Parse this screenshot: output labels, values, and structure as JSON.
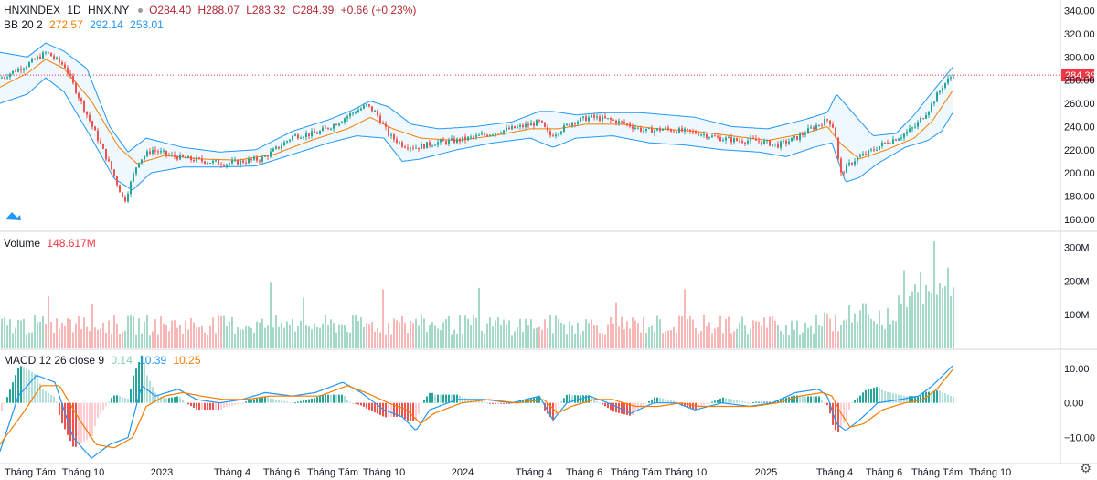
{
  "header": {
    "symbol": "HNXINDEX",
    "interval": "1D",
    "exchange": "HNX.NY",
    "open": "O284.40",
    "high": "H288.07",
    "low": "L283.32",
    "close": "C284.39",
    "change": "+0.66 (+0.23%)"
  },
  "bb": {
    "label": "BB 20 2",
    "mid": "272.57",
    "upper": "292.14",
    "lower": "253.01"
  },
  "volume": {
    "label": "Volume",
    "value": "148.617M"
  },
  "macd": {
    "label": "MACD 12 26 close 9",
    "hist": "0.14",
    "macd": "10.39",
    "signal": "10.25"
  },
  "price_tag": "284.39",
  "colors": {
    "up": "#26a69a",
    "down": "#ef5350",
    "bb_band": "#2196f3",
    "bb_mid": "#f57c00",
    "macd": "#2196f3",
    "signal": "#f57c00"
  },
  "chart_data": {
    "type": "candlestick",
    "price_axis": {
      "ticks": [
        "340.00",
        "320.00",
        "300.00",
        "280.00",
        "260.00",
        "240.00",
        "220.00",
        "200.00",
        "180.00",
        "160.00"
      ],
      "ylim": [
        152,
        346
      ]
    },
    "volume_axis": {
      "ticks": [
        "300M",
        "200M",
        "100M"
      ],
      "ylim": [
        0,
        340
      ]
    },
    "macd_axis": {
      "ticks": [
        "10.00",
        "0.00",
        "−10.00"
      ],
      "ylim": [
        -17,
        15
      ]
    },
    "x_labels": [
      "Tháng Tám",
      "Tháng 10",
      "2023",
      "Tháng 4",
      "Tháng 6",
      "Tháng Tám",
      "Tháng 10",
      "2024",
      "Tháng 4",
      "Tháng 6",
      "Tháng Tám",
      "Tháng 10",
      "2025",
      "Tháng 4",
      "Tháng 6",
      "Tháng Tám",
      "Tháng 10"
    ],
    "price_path": [
      [
        0,
        282
      ],
      [
        30,
        294
      ],
      [
        50,
        304
      ],
      [
        70,
        292
      ],
      [
        100,
        240
      ],
      [
        120,
        205
      ],
      [
        135,
        175
      ],
      [
        150,
        210
      ],
      [
        165,
        220
      ],
      [
        185,
        215
      ],
      [
        205,
        212
      ],
      [
        225,
        210
      ],
      [
        245,
        208
      ],
      [
        265,
        210
      ],
      [
        285,
        212
      ],
      [
        300,
        220
      ],
      [
        320,
        232
      ],
      [
        345,
        234
      ],
      [
        365,
        242
      ],
      [
        385,
        252
      ],
      [
        400,
        258
      ],
      [
        410,
        252
      ],
      [
        425,
        232
      ],
      [
        440,
        224
      ],
      [
        455,
        222
      ],
      [
        475,
        226
      ],
      [
        500,
        228
      ],
      [
        525,
        232
      ],
      [
        545,
        236
      ],
      [
        570,
        240
      ],
      [
        590,
        244
      ],
      [
        600,
        232
      ],
      [
        610,
        236
      ],
      [
        625,
        244
      ],
      [
        645,
        248
      ],
      [
        665,
        246
      ],
      [
        685,
        242
      ],
      [
        705,
        236
      ],
      [
        725,
        238
      ],
      [
        745,
        236
      ],
      [
        765,
        234
      ],
      [
        785,
        230
      ],
      [
        805,
        228
      ],
      [
        825,
        228
      ],
      [
        850,
        224
      ],
      [
        870,
        230
      ],
      [
        890,
        240
      ],
      [
        905,
        246
      ],
      [
        912,
        238
      ],
      [
        918,
        198
      ],
      [
        925,
        205
      ],
      [
        935,
        212
      ],
      [
        950,
        218
      ],
      [
        965,
        225
      ],
      [
        985,
        232
      ],
      [
        1000,
        240
      ],
      [
        1015,
        255
      ],
      [
        1030,
        275
      ],
      [
        1043,
        286
      ]
    ],
    "bb_mid_path": [
      [
        0,
        274
      ],
      [
        30,
        286
      ],
      [
        50,
        298
      ],
      [
        70,
        290
      ],
      [
        100,
        262
      ],
      [
        130,
        222
      ],
      [
        150,
        208
      ],
      [
        180,
        215
      ],
      [
        220,
        212
      ],
      [
        260,
        211
      ],
      [
        300,
        216
      ],
      [
        340,
        228
      ],
      [
        380,
        238
      ],
      [
        405,
        248
      ],
      [
        430,
        238
      ],
      [
        460,
        230
      ],
      [
        500,
        228
      ],
      [
        540,
        232
      ],
      [
        580,
        238
      ],
      [
        610,
        238
      ],
      [
        640,
        242
      ],
      [
        680,
        242
      ],
      [
        720,
        238
      ],
      [
        760,
        236
      ],
      [
        800,
        232
      ],
      [
        840,
        228
      ],
      [
        880,
        234
      ],
      [
        905,
        240
      ],
      [
        920,
        225
      ],
      [
        940,
        212
      ],
      [
        970,
        220
      ],
      [
        1000,
        230
      ],
      [
        1020,
        245
      ],
      [
        1043,
        272
      ]
    ],
    "bb_upper_path": [
      [
        0,
        304
      ],
      [
        30,
        300
      ],
      [
        50,
        312
      ],
      [
        70,
        305
      ],
      [
        95,
        290
      ],
      [
        120,
        240
      ],
      [
        140,
        218
      ],
      [
        160,
        230
      ],
      [
        200,
        222
      ],
      [
        240,
        218
      ],
      [
        280,
        220
      ],
      [
        320,
        236
      ],
      [
        360,
        246
      ],
      [
        385,
        254
      ],
      [
        405,
        262
      ],
      [
        425,
        257
      ],
      [
        450,
        242
      ],
      [
        480,
        238
      ],
      [
        520,
        240
      ],
      [
        560,
        244
      ],
      [
        590,
        253
      ],
      [
        605,
        253
      ],
      [
        630,
        250
      ],
      [
        660,
        252
      ],
      [
        700,
        252
      ],
      [
        730,
        250
      ],
      [
        760,
        248
      ],
      [
        800,
        240
      ],
      [
        840,
        238
      ],
      [
        880,
        246
      ],
      [
        905,
        252
      ],
      [
        915,
        268
      ],
      [
        935,
        250
      ],
      [
        955,
        232
      ],
      [
        980,
        234
      ],
      [
        1000,
        250
      ],
      [
        1020,
        270
      ],
      [
        1043,
        292
      ]
    ],
    "bb_lower_path": [
      [
        0,
        260
      ],
      [
        30,
        268
      ],
      [
        50,
        282
      ],
      [
        70,
        270
      ],
      [
        100,
        230
      ],
      [
        125,
        195
      ],
      [
        145,
        185
      ],
      [
        165,
        200
      ],
      [
        200,
        205
      ],
      [
        240,
        205
      ],
      [
        280,
        206
      ],
      [
        320,
        216
      ],
      [
        360,
        226
      ],
      [
        390,
        232
      ],
      [
        420,
        230
      ],
      [
        440,
        210
      ],
      [
        460,
        212
      ],
      [
        500,
        220
      ],
      [
        540,
        226
      ],
      [
        580,
        230
      ],
      [
        605,
        222
      ],
      [
        630,
        230
      ],
      [
        670,
        232
      ],
      [
        710,
        226
      ],
      [
        750,
        224
      ],
      [
        790,
        220
      ],
      [
        830,
        218
      ],
      [
        860,
        214
      ],
      [
        890,
        222
      ],
      [
        910,
        226
      ],
      [
        925,
        192
      ],
      [
        940,
        196
      ],
      [
        960,
        208
      ],
      [
        990,
        222
      ],
      [
        1015,
        228
      ],
      [
        1030,
        236
      ],
      [
        1043,
        253
      ]
    ],
    "macd_path": [
      [
        0,
        -14
      ],
      [
        20,
        2
      ],
      [
        40,
        8
      ],
      [
        60,
        6
      ],
      [
        80,
        -10
      ],
      [
        100,
        -16
      ],
      [
        120,
        -12
      ],
      [
        140,
        -10
      ],
      [
        155,
        5
      ],
      [
        170,
        2
      ],
      [
        195,
        4
      ],
      [
        215,
        1
      ],
      [
        240,
        0
      ],
      [
        265,
        1
      ],
      [
        290,
        3
      ],
      [
        320,
        2
      ],
      [
        345,
        3
      ],
      [
        375,
        6
      ],
      [
        395,
        3
      ],
      [
        420,
        -2
      ],
      [
        440,
        -4
      ],
      [
        455,
        -8
      ],
      [
        470,
        -2
      ],
      [
        500,
        1
      ],
      [
        530,
        1
      ],
      [
        560,
        0
      ],
      [
        590,
        2
      ],
      [
        605,
        -5
      ],
      [
        620,
        0
      ],
      [
        645,
        2
      ],
      [
        665,
        0
      ],
      [
        690,
        -3
      ],
      [
        715,
        0
      ],
      [
        740,
        0
      ],
      [
        760,
        -2
      ],
      [
        790,
        0
      ],
      [
        820,
        -1
      ],
      [
        845,
        0
      ],
      [
        870,
        3
      ],
      [
        895,
        4
      ],
      [
        905,
        2
      ],
      [
        915,
        -6
      ],
      [
        925,
        -8
      ],
      [
        940,
        -5
      ],
      [
        960,
        0
      ],
      [
        985,
        1
      ],
      [
        1005,
        2
      ],
      [
        1020,
        5
      ],
      [
        1043,
        11
      ]
    ],
    "signal_path": [
      [
        0,
        -12
      ],
      [
        25,
        -3
      ],
      [
        45,
        5
      ],
      [
        65,
        5
      ],
      [
        85,
        -4
      ],
      [
        105,
        -12
      ],
      [
        125,
        -13
      ],
      [
        145,
        -10
      ],
      [
        160,
        -1
      ],
      [
        180,
        2
      ],
      [
        200,
        3
      ],
      [
        220,
        2
      ],
      [
        245,
        1
      ],
      [
        270,
        1
      ],
      [
        295,
        2
      ],
      [
        325,
        2
      ],
      [
        350,
        2
      ],
      [
        380,
        5
      ],
      [
        400,
        3
      ],
      [
        425,
        0
      ],
      [
        445,
        -2
      ],
      [
        460,
        -6
      ],
      [
        475,
        -3
      ],
      [
        505,
        0
      ],
      [
        535,
        1
      ],
      [
        565,
        0
      ],
      [
        595,
        1
      ],
      [
        610,
        -3
      ],
      [
        625,
        -1
      ],
      [
        650,
        1
      ],
      [
        670,
        1
      ],
      [
        695,
        -1
      ],
      [
        720,
        -1
      ],
      [
        745,
        0
      ],
      [
        765,
        -1
      ],
      [
        795,
        -1
      ],
      [
        825,
        -1
      ],
      [
        850,
        0
      ],
      [
        875,
        2
      ],
      [
        900,
        3
      ],
      [
        910,
        2
      ],
      [
        920,
        -3
      ],
      [
        930,
        -7
      ],
      [
        945,
        -6
      ],
      [
        965,
        -2
      ],
      [
        990,
        0
      ],
      [
        1010,
        1
      ],
      [
        1025,
        4
      ],
      [
        1043,
        10
      ]
    ]
  }
}
